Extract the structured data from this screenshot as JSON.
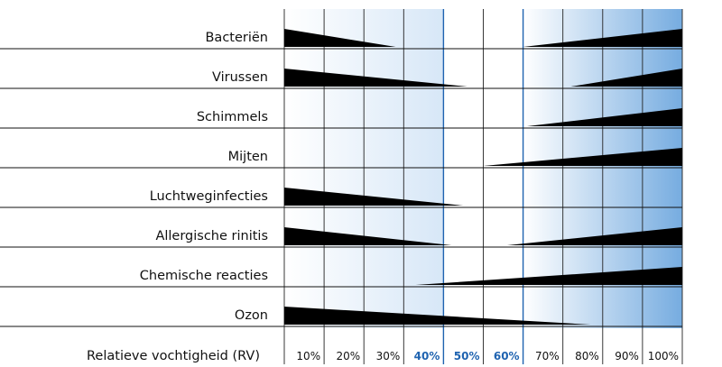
{
  "chart_data": {
    "type": "area",
    "title": "",
    "xlabel": "Relatieve vochtigheid (RV)",
    "xlim": [
      0,
      100
    ],
    "x_ticks": [
      {
        "value": 0,
        "label": ""
      },
      {
        "value": 10,
        "label": "10%"
      },
      {
        "value": 20,
        "label": "20%"
      },
      {
        "value": 30,
        "label": "30%"
      },
      {
        "value": 40,
        "label": "40%",
        "highlight": true
      },
      {
        "value": 50,
        "label": "50%",
        "highlight": true
      },
      {
        "value": 60,
        "label": "60%",
        "highlight": true
      },
      {
        "value": 70,
        "label": "70%"
      },
      {
        "value": 80,
        "label": "80%"
      },
      {
        "value": 90,
        "label": "90%"
      },
      {
        "value": 100,
        "label": "100%"
      }
    ],
    "optimal_range": [
      40,
      60
    ],
    "series": [
      {
        "name": "Bacteriën",
        "low_end": 28,
        "high_start": 60
      },
      {
        "name": "Virussen",
        "low_end": 46,
        "high_start": 72
      },
      {
        "name": "Schimmels",
        "low_end": null,
        "high_start": 61
      },
      {
        "name": "Mijten",
        "low_end": null,
        "high_start": 50
      },
      {
        "name": "Luchtweginfecties",
        "low_end": 45,
        "high_start": null
      },
      {
        "name": "Allergische rinitis",
        "low_end": 42,
        "high_start": 56
      },
      {
        "name": "Chemische reacties",
        "low_end": null,
        "high_start": 33
      },
      {
        "name": "Ozon",
        "low_end": 77,
        "high_start": null
      }
    ],
    "colors": {
      "accent": "#1f63b0",
      "gradient_end": "#76ace0",
      "bar": "#000000"
    }
  }
}
